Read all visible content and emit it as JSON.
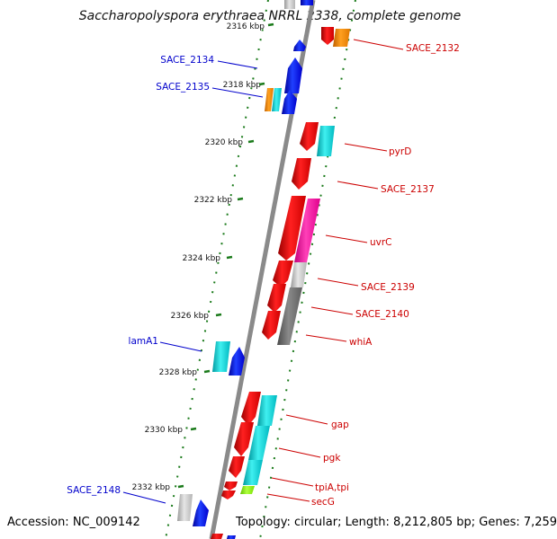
{
  "title": "Saccharopolyspora erythraea NRRL 2338, complete genome",
  "accession": "Accession: NC_009142",
  "topology": "Topology: circular; Length: 8,212,805 bp; Genes: 7,259",
  "colors": {
    "forward": "#ff0000",
    "reverse": "#0000ff",
    "cyan": "#00c8d0",
    "magenta": "#ff1aa0",
    "orange": "#ff8c00",
    "lightgray": "#c8c8c8",
    "darkgray": "#707070",
    "lime": "#88ff00",
    "label_right": "#cc0000",
    "label_left": "#0000cc",
    "tick": "#1a7a1a",
    "axis": "#888888"
  },
  "kbp_marks": [
    "2316 kbp",
    "2318 kbp",
    "2320 kbp",
    "2322 kbp",
    "2324 kbp",
    "2326 kbp",
    "2328 kbp",
    "2330 kbp",
    "2332 kbp"
  ],
  "right_labels": [
    "SACE_2132",
    "pyrD",
    "SACE_2137",
    "uvrC",
    "SACE_2139",
    "SACE_2140",
    "whiA",
    "gap",
    "pgk",
    "tpiA,tpi",
    "secG"
  ],
  "left_labels": [
    "SACE_2134",
    "SACE_2135",
    "lamA1",
    "SACE_2148"
  ]
}
